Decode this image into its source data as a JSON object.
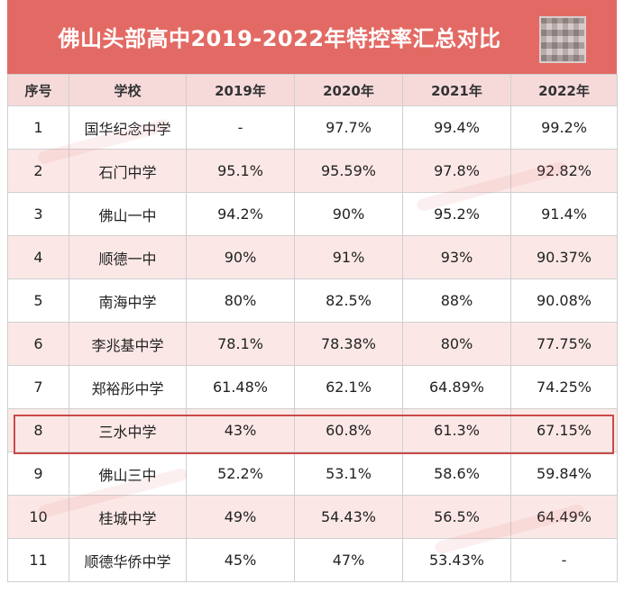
{
  "title": "佛山头部高中2019-2022年特控率汇总对比",
  "headers": [
    "序号",
    "学校",
    "2019年",
    "2020年",
    "2021年",
    "2022年"
  ],
  "rows": [
    [
      "1",
      "国华纪念中学",
      "-",
      "97.7%",
      "99.4%",
      "99.2%"
    ],
    [
      "2",
      "石门中学",
      "95.1%",
      "95.59%",
      "97.8%",
      "92.82%"
    ],
    [
      "3",
      "佛山一中",
      "94.2%",
      "90%",
      "95.2%",
      "91.4%"
    ],
    [
      "4",
      "顺德一中",
      "90%",
      "91%",
      "93%",
      "90.37%"
    ],
    [
      "5",
      "南海中学",
      "80%",
      "82.5%",
      "88%",
      "90.08%"
    ],
    [
      "6",
      "李兆基中学",
      "78.1%",
      "78.38%",
      "80%",
      "77.75%"
    ],
    [
      "7",
      "郑裕彤中学",
      "61.48%",
      "62.1%",
      "64.89%",
      "74.25%"
    ],
    [
      "8",
      "三水中学",
      "43%",
      "60.8%",
      "61.3%",
      "67.15%"
    ],
    [
      "9",
      "佛山三中",
      "52.2%",
      "53.1%",
      "58.6%",
      "59.84%"
    ],
    [
      "10",
      "桂城中学",
      "49%",
      "54.43%",
      "56.5%",
      "64.49%"
    ],
    [
      "11",
      "顺德华侨中学",
      "45%",
      "47%",
      "53.43%",
      "-"
    ]
  ],
  "colors": {
    "header_bar": "#e36a64",
    "header_row": "#f6dada",
    "stripe": "#fbe8e6",
    "highlight_border": "#c94a4a"
  }
}
